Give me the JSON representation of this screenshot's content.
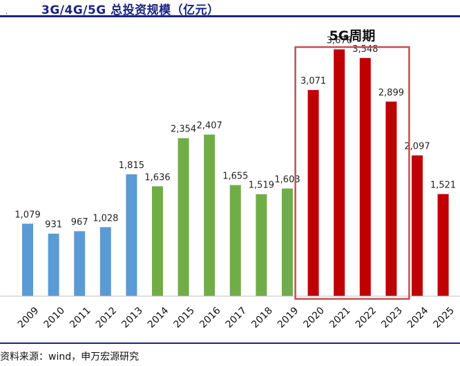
{
  "header": {
    "marker": ".",
    "title": "3G/4G/5G 总投资规模（亿元）"
  },
  "footer": {
    "source": "资料来源：wind，申万宏源研究"
  },
  "chart_data": {
    "type": "bar",
    "title": "3G/4G/5G 总投资规模（亿元）",
    "xlabel": "",
    "ylabel": "亿元",
    "ylim": [
      0,
      4000
    ],
    "categories": [
      "2009",
      "2010",
      "2011",
      "2012",
      "2013",
      "2014",
      "2015",
      "2016",
      "2017",
      "2018",
      "2019",
      "2020",
      "2021",
      "2022",
      "2023",
      "2024",
      "2025"
    ],
    "values": [
      1079,
      931,
      967,
      1028,
      1815,
      1636,
      2354,
      2407,
      1655,
      1519,
      1603,
      3071,
      3676,
      3548,
      2899,
      2097,
      1521
    ],
    "labels": [
      "1,079",
      "931",
      "967",
      "1,028",
      "1,815",
      "1,636",
      "2,354",
      "2,407",
      "1,655",
      "1,519",
      "1,603",
      "3,071",
      "3,676",
      "3,548",
      "2,899",
      "2,097",
      "1,521"
    ],
    "generation": [
      "3G",
      "3G",
      "3G",
      "3G",
      "3G",
      "4G",
      "4G",
      "4G",
      "4G",
      "4G",
      "4G",
      "5G",
      "5G",
      "5G",
      "5G",
      "5G",
      "5G"
    ],
    "colors": {
      "3G": "#5b9bd5",
      "4G": "#70ad47",
      "5G": "#c00000"
    },
    "highlight": {
      "label": "5G周期",
      "from": "2020",
      "to": "2023",
      "color": "#c0504d"
    },
    "grid": false,
    "legend": "none"
  }
}
